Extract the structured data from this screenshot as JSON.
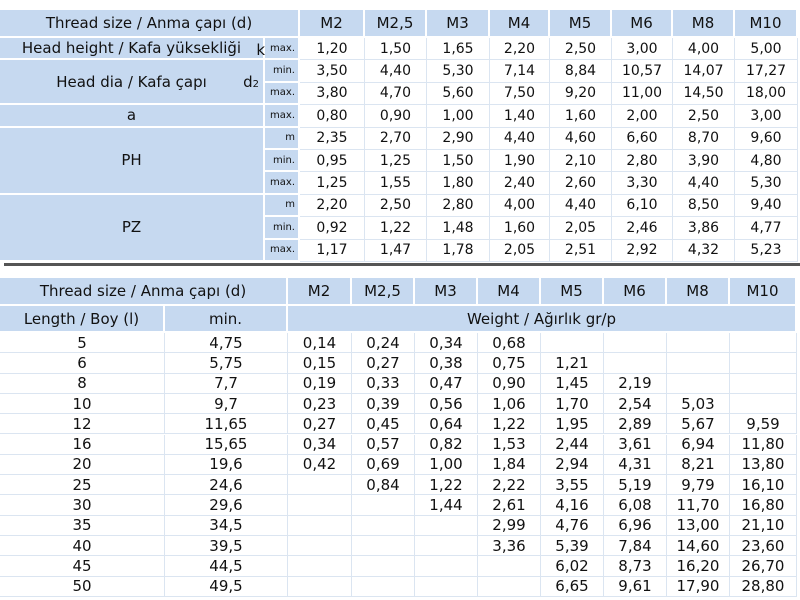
{
  "table1": {
    "header": {
      "label": "Thread size / Anma çapı (d)",
      "columns": [
        "M2",
        "M2,5",
        "M3",
        "M4",
        "M5",
        "M6",
        "M8",
        "M10"
      ]
    },
    "rows": [
      {
        "label": "Head height / Kafa yüksekliği",
        "symbol": "k",
        "lines": [
          {
            "qualifier": "max.",
            "values": [
              "1,20",
              "1,50",
              "1,65",
              "2,20",
              "2,50",
              "3,00",
              "4,00",
              "5,00"
            ]
          }
        ]
      },
      {
        "label": "Head dia / Kafa çapı",
        "symbol": "d",
        "symbol_subscript": "2",
        "lines": [
          {
            "qualifier": "min.",
            "values": [
              "3,50",
              "4,40",
              "5,30",
              "7,14",
              "8,84",
              "10,57",
              "14,07",
              "17,27"
            ]
          },
          {
            "qualifier": "max.",
            "values": [
              "3,80",
              "4,70",
              "5,60",
              "7,50",
              "9,20",
              "11,00",
              "14,50",
              "18,00"
            ]
          }
        ]
      },
      {
        "label": "a",
        "lines": [
          {
            "qualifier": "max.",
            "values": [
              "0,80",
              "0,90",
              "1,00",
              "1,40",
              "1,60",
              "2,00",
              "2,50",
              "3,00"
            ]
          }
        ]
      },
      {
        "label": "PH",
        "lines": [
          {
            "qualifier": "m",
            "values": [
              "2,35",
              "2,70",
              "2,90",
              "4,40",
              "4,60",
              "6,60",
              "8,70",
              "9,60"
            ]
          },
          {
            "qualifier": "min.",
            "values": [
              "0,95",
              "1,25",
              "1,50",
              "1,90",
              "2,10",
              "2,80",
              "3,90",
              "4,80"
            ]
          },
          {
            "qualifier": "max.",
            "values": [
              "1,25",
              "1,55",
              "1,80",
              "2,40",
              "2,60",
              "3,30",
              "4,40",
              "5,30"
            ]
          }
        ]
      },
      {
        "label": "PZ",
        "lines": [
          {
            "qualifier": "m",
            "values": [
              "2,20",
              "2,50",
              "2,80",
              "4,00",
              "4,40",
              "6,10",
              "8,50",
              "9,40"
            ]
          },
          {
            "qualifier": "min.",
            "values": [
              "0,92",
              "1,22",
              "1,48",
              "1,60",
              "2,05",
              "2,46",
              "3,86",
              "4,77"
            ]
          },
          {
            "qualifier": "max.",
            "values": [
              "1,17",
              "1,47",
              "1,78",
              "2,05",
              "2,51",
              "2,92",
              "4,32",
              "5,23"
            ]
          }
        ]
      }
    ]
  },
  "table2": {
    "header": {
      "label": "Thread size / Anma çapı (d)",
      "columns": [
        "M2",
        "M2,5",
        "M3",
        "M4",
        "M5",
        "M6",
        "M8",
        "M10"
      ]
    },
    "subheader": {
      "length": "Length / Boy (l)",
      "min": "min.",
      "weight": "Weight / Ağırlık gr/p"
    },
    "rows": [
      {
        "length": "5",
        "min": "4,75",
        "weights": [
          "0,14",
          "0,24",
          "0,34",
          "0,68",
          null,
          null,
          null,
          null
        ]
      },
      {
        "length": "6",
        "min": "5,75",
        "weights": [
          "0,15",
          "0,27",
          "0,38",
          "0,75",
          "1,21",
          null,
          null,
          null
        ]
      },
      {
        "length": "8",
        "min": "7,7",
        "weights": [
          "0,19",
          "0,33",
          "0,47",
          "0,90",
          "1,45",
          "2,19",
          null,
          null
        ]
      },
      {
        "length": "10",
        "min": "9,7",
        "weights": [
          "0,23",
          "0,39",
          "0,56",
          "1,06",
          "1,70",
          "2,54",
          "5,03",
          null
        ]
      },
      {
        "length": "12",
        "min": "11,65",
        "weights": [
          "0,27",
          "0,45",
          "0,64",
          "1,22",
          "1,95",
          "2,89",
          "5,67",
          "9,59"
        ]
      },
      {
        "length": "16",
        "min": "15,65",
        "weights": [
          "0,34",
          "0,57",
          "0,82",
          "1,53",
          "2,44",
          "3,61",
          "6,94",
          "11,80"
        ]
      },
      {
        "length": "20",
        "min": "19,6",
        "weights": [
          "0,42",
          "0,69",
          "1,00",
          "1,84",
          "2,94",
          "4,31",
          "8,21",
          "13,80"
        ]
      },
      {
        "length": "25",
        "min": "24,6",
        "weights": [
          null,
          "0,84",
          "1,22",
          "2,22",
          "3,55",
          "5,19",
          "9,79",
          "16,10"
        ]
      },
      {
        "length": "30",
        "min": "29,6",
        "weights": [
          null,
          null,
          "1,44",
          "2,61",
          "4,16",
          "6,08",
          "11,70",
          "16,80"
        ]
      },
      {
        "length": "35",
        "min": "34,5",
        "weights": [
          null,
          null,
          null,
          "2,99",
          "4,76",
          "6,96",
          "13,00",
          "21,10"
        ]
      },
      {
        "length": "40",
        "min": "39,5",
        "weights": [
          null,
          null,
          null,
          "3,36",
          "5,39",
          "7,84",
          "14,60",
          "23,60"
        ]
      },
      {
        "length": "45",
        "min": "44,5",
        "weights": [
          null,
          null,
          null,
          null,
          "6,02",
          "8,73",
          "16,20",
          "26,70"
        ]
      },
      {
        "length": "50",
        "min": "49,5",
        "weights": [
          null,
          null,
          null,
          null,
          "6,65",
          "9,61",
          "17,90",
          "28,80"
        ]
      }
    ]
  }
}
